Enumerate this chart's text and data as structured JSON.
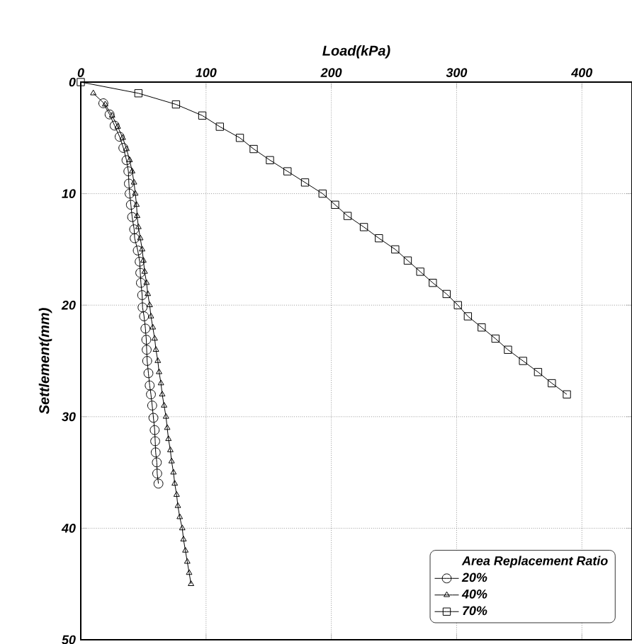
{
  "chart_data": {
    "type": "line",
    "xlabel": "Load(kPa)",
    "ylabel": "Settlement(mm)",
    "legend_title": "Area Replacement Ratio",
    "xlim": [
      0,
      440
    ],
    "xticks": [
      0,
      100,
      200,
      300,
      400
    ],
    "ylim": [
      50,
      0
    ],
    "yticks": [
      0,
      10,
      20,
      30,
      40,
      50
    ],
    "grid": true,
    "legend": "bottom right",
    "line_style": "solid",
    "series": [
      {
        "name": "20%",
        "color": "#000000",
        "marker": "circle",
        "x": [
          18,
          23,
          27,
          31,
          34,
          36.5,
          38,
          38.4,
          39,
          40,
          41,
          42.6,
          43,
          45.5,
          47,
          47.5,
          48,
          49,
          49.3,
          50.5,
          51.6,
          52.3,
          52.6,
          53,
          54,
          55,
          56,
          57,
          58,
          59,
          59.4,
          59.8,
          60.7,
          61,
          62
        ],
        "values": [
          1.9,
          2.9,
          3.9,
          4.9,
          5.9,
          7,
          8,
          9.1,
          10,
          11,
          12.1,
          13.2,
          14,
          15.1,
          16.1,
          17.1,
          18,
          19.1,
          20.2,
          21,
          22.1,
          23.1,
          24,
          25,
          26.1,
          27.2,
          28,
          29,
          30.1,
          31.2,
          32.2,
          33.2,
          34.1,
          35.1,
          36
        ]
      },
      {
        "name": "40%",
        "color": "#000000",
        "marker": "triangle",
        "x": [
          10,
          19.5,
          25,
          29.5,
          33.5,
          36.5,
          39,
          41,
          42.5,
          43.5,
          44.5,
          45,
          46,
          47.5,
          49,
          50,
          51,
          52.5,
          53.5,
          55,
          56,
          57.5,
          59,
          60,
          61.5,
          62.5,
          64,
          65,
          66.5,
          68,
          69,
          70,
          71.5,
          72.5,
          74,
          75,
          76.5,
          77.5,
          79,
          81,
          82,
          83.5,
          85,
          86.5,
          88
        ],
        "values": [
          1,
          2,
          3,
          4,
          5,
          6,
          7,
          8,
          9,
          10,
          11,
          12,
          13,
          14,
          15,
          16,
          17,
          18,
          19,
          20,
          21,
          22,
          23,
          24,
          25,
          26,
          27,
          28,
          29,
          30,
          31,
          32,
          33,
          34,
          35,
          36,
          37,
          38,
          39,
          40,
          41,
          42,
          43,
          44,
          45
        ]
      },
      {
        "name": "70%",
        "color": "#000000",
        "marker": "square",
        "x": [
          0,
          46,
          76,
          97,
          111,
          127,
          138,
          151,
          165,
          179,
          193,
          203,
          213,
          226,
          238,
          251,
          261,
          271,
          281,
          292,
          301,
          309,
          320,
          331,
          341,
          353,
          365,
          376,
          388
        ],
        "values": [
          0,
          1,
          2,
          3,
          4,
          5,
          6,
          7,
          8,
          9,
          10,
          11,
          12,
          13,
          14,
          15,
          16,
          17,
          18,
          19,
          20,
          21,
          22,
          23,
          24,
          25,
          26,
          27,
          28
        ]
      }
    ]
  }
}
